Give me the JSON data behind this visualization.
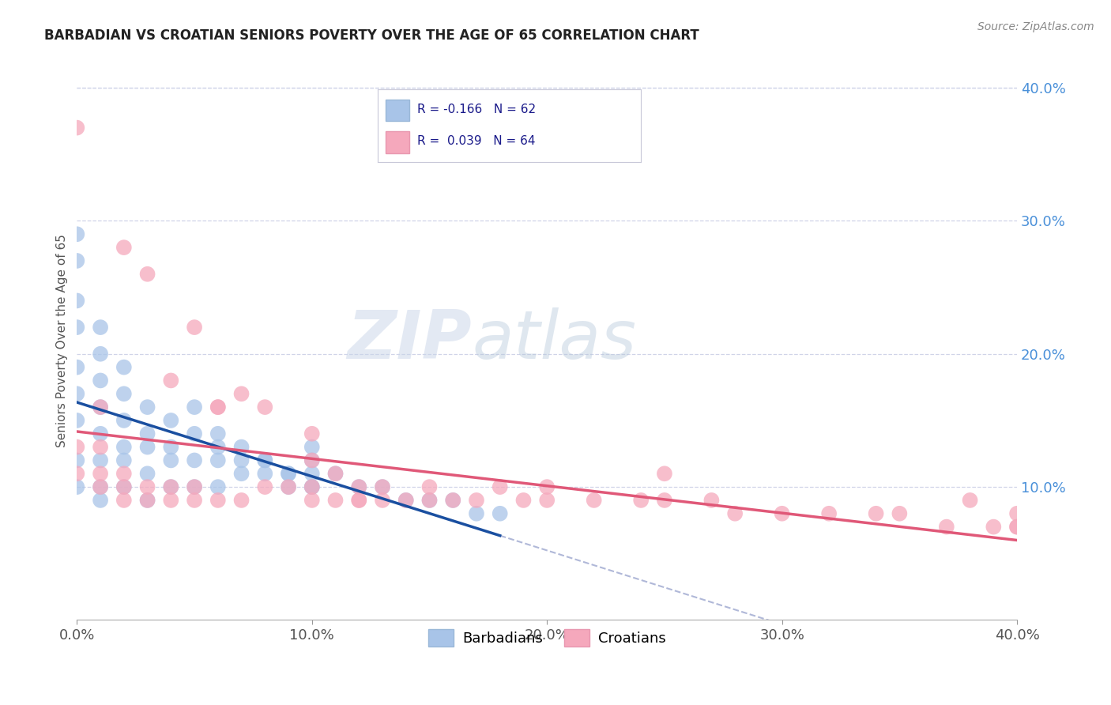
{
  "title": "BARBADIAN VS CROATIAN SENIORS POVERTY OVER THE AGE OF 65 CORRELATION CHART",
  "source": "Source: ZipAtlas.com",
  "ylabel": "Seniors Poverty Over the Age of 65",
  "xlim": [
    0.0,
    0.4
  ],
  "ylim": [
    0.0,
    0.42
  ],
  "xticks": [
    0.0,
    0.1,
    0.2,
    0.3,
    0.4
  ],
  "xticklabels": [
    "0.0%",
    "10.0%",
    "20.0%",
    "30.0%",
    "40.0%"
  ],
  "yticks_right": [
    0.1,
    0.2,
    0.3,
    0.4
  ],
  "yticklabels_right": [
    "10.0%",
    "20.0%",
    "30.0%",
    "40.0%"
  ],
  "watermark_zip": "ZIP",
  "watermark_atlas": "atlas",
  "legend_line1": "R = -0.166   N = 62",
  "legend_line2": "R =  0.039   N = 64",
  "barbadian_color": "#a8c4e8",
  "croatian_color": "#f5a8bc",
  "barbadian_line_color": "#1a4fa0",
  "croatian_line_color": "#e05878",
  "dashed_line_color": "#b0b8d8",
  "background_color": "#ffffff",
  "grid_color": "#d0d4e8",
  "right_tick_color": "#4a90d9",
  "barbadian_x": [
    0.0,
    0.0,
    0.0,
    0.0,
    0.0,
    0.0,
    0.0,
    0.0,
    0.0,
    0.01,
    0.01,
    0.01,
    0.01,
    0.01,
    0.01,
    0.01,
    0.01,
    0.02,
    0.02,
    0.02,
    0.02,
    0.02,
    0.02,
    0.03,
    0.03,
    0.03,
    0.03,
    0.03,
    0.04,
    0.04,
    0.04,
    0.04,
    0.05,
    0.05,
    0.05,
    0.06,
    0.06,
    0.06,
    0.07,
    0.07,
    0.08,
    0.08,
    0.09,
    0.09,
    0.1,
    0.1,
    0.1,
    0.1,
    0.11,
    0.12,
    0.13,
    0.14,
    0.15,
    0.16,
    0.17,
    0.18,
    0.05,
    0.06,
    0.07,
    0.08,
    0.09,
    0.1
  ],
  "barbadian_y": [
    0.15,
    0.17,
    0.19,
    0.22,
    0.24,
    0.27,
    0.29,
    0.12,
    0.1,
    0.14,
    0.16,
    0.18,
    0.2,
    0.22,
    0.12,
    0.1,
    0.09,
    0.13,
    0.15,
    0.17,
    0.19,
    0.12,
    0.1,
    0.14,
    0.16,
    0.13,
    0.11,
    0.09,
    0.15,
    0.13,
    0.12,
    0.1,
    0.14,
    0.12,
    0.1,
    0.13,
    0.12,
    0.1,
    0.12,
    0.11,
    0.12,
    0.11,
    0.11,
    0.1,
    0.13,
    0.12,
    0.11,
    0.1,
    0.11,
    0.1,
    0.1,
    0.09,
    0.09,
    0.09,
    0.08,
    0.08,
    0.16,
    0.14,
    0.13,
    0.12,
    0.11,
    0.1
  ],
  "croatian_x": [
    0.0,
    0.0,
    0.0,
    0.01,
    0.01,
    0.01,
    0.01,
    0.02,
    0.02,
    0.02,
    0.02,
    0.03,
    0.03,
    0.03,
    0.04,
    0.04,
    0.04,
    0.05,
    0.05,
    0.05,
    0.06,
    0.06,
    0.07,
    0.07,
    0.08,
    0.09,
    0.1,
    0.1,
    0.1,
    0.11,
    0.11,
    0.12,
    0.12,
    0.13,
    0.13,
    0.14,
    0.15,
    0.16,
    0.17,
    0.18,
    0.19,
    0.2,
    0.22,
    0.24,
    0.25,
    0.27,
    0.28,
    0.3,
    0.32,
    0.34,
    0.35,
    0.37,
    0.38,
    0.39,
    0.4,
    0.4,
    0.4,
    0.06,
    0.08,
    0.1,
    0.12,
    0.25,
    0.15,
    0.2
  ],
  "croatian_y": [
    0.11,
    0.13,
    0.37,
    0.1,
    0.11,
    0.13,
    0.16,
    0.1,
    0.11,
    0.28,
    0.09,
    0.1,
    0.26,
    0.09,
    0.1,
    0.18,
    0.09,
    0.1,
    0.22,
    0.09,
    0.16,
    0.09,
    0.17,
    0.09,
    0.16,
    0.1,
    0.14,
    0.1,
    0.09,
    0.11,
    0.09,
    0.1,
    0.09,
    0.1,
    0.09,
    0.09,
    0.1,
    0.09,
    0.09,
    0.1,
    0.09,
    0.1,
    0.09,
    0.09,
    0.11,
    0.09,
    0.08,
    0.08,
    0.08,
    0.08,
    0.08,
    0.07,
    0.09,
    0.07,
    0.08,
    0.07,
    0.07,
    0.16,
    0.1,
    0.12,
    0.09,
    0.09,
    0.09,
    0.09
  ]
}
